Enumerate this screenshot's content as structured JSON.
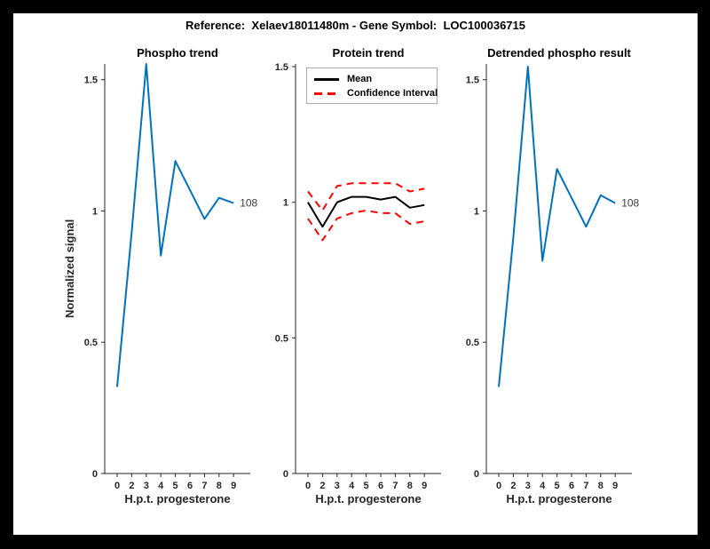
{
  "figure": {
    "title": "Reference:  Xelaev18011480m - Gene Symbol:  LOC100036715"
  },
  "chart_data": [
    {
      "type": "line",
      "title": "Phospho trend",
      "xlabel": "H.p.t. progesterone",
      "ylabel": "Normalized signal",
      "categories": [
        "0",
        "2",
        "3",
        "4",
        "5",
        "6",
        "7",
        "8",
        "9"
      ],
      "yticks": [
        "0",
        "0.5",
        "1",
        "1.5"
      ],
      "ylim": [
        0,
        1.56
      ],
      "grid": false,
      "series": [
        {
          "name": "phospho-trend",
          "color": "#0072BD",
          "style": "solid",
          "values": [
            0.33,
            0.92,
            1.56,
            0.83,
            1.19,
            1.08,
            0.97,
            1.05,
            1.03
          ]
        }
      ],
      "annotation": {
        "text": "108"
      }
    },
    {
      "type": "line",
      "title": "Protein trend",
      "xlabel": "H.p.t. progesterone",
      "ylabel": "",
      "categories": [
        "0",
        "2",
        "3",
        "4",
        "5",
        "6",
        "7",
        "8",
        "9"
      ],
      "yticks": [
        "0",
        "0.5",
        "1",
        "1.5"
      ],
      "ylim": [
        0,
        1.51
      ],
      "grid": false,
      "series": [
        {
          "name": "mean",
          "color": "#000000",
          "style": "solid",
          "values": [
            1.0,
            0.91,
            1.0,
            1.02,
            1.02,
            1.01,
            1.02,
            0.98,
            0.99
          ]
        },
        {
          "name": "confidence-interval-upper",
          "color": "#FF0000",
          "style": "dashed",
          "values": [
            1.04,
            0.97,
            1.06,
            1.07,
            1.07,
            1.07,
            1.07,
            1.04,
            1.05
          ]
        },
        {
          "name": "confidence-interval-lower",
          "color": "#FF0000",
          "style": "dashed",
          "values": [
            0.94,
            0.86,
            0.94,
            0.96,
            0.97,
            0.96,
            0.96,
            0.92,
            0.93
          ]
        }
      ],
      "legend": {
        "position": "northwest",
        "entries": [
          "Mean",
          "Confidence Interval"
        ]
      }
    },
    {
      "type": "line",
      "title": "Detrended phospho result",
      "xlabel": "H.p.t. progesterone",
      "ylabel": "",
      "categories": [
        "0",
        "2",
        "3",
        "4",
        "5",
        "6",
        "7",
        "8",
        "9"
      ],
      "yticks": [
        "0",
        "0.5",
        "1",
        "1.5"
      ],
      "ylim": [
        0,
        1.56
      ],
      "grid": false,
      "series": [
        {
          "name": "detrended-phospho",
          "color": "#0072BD",
          "style": "solid",
          "values": [
            0.33,
            0.9,
            1.55,
            0.81,
            1.16,
            1.05,
            0.94,
            1.06,
            1.03
          ]
        }
      ],
      "annotation": {
        "text": "108"
      }
    }
  ],
  "colors": {
    "accent_blue": "#0072BD",
    "ci_red": "#FF0000",
    "mean_black": "#000000",
    "axis": "#262626",
    "frame": "#000000"
  }
}
